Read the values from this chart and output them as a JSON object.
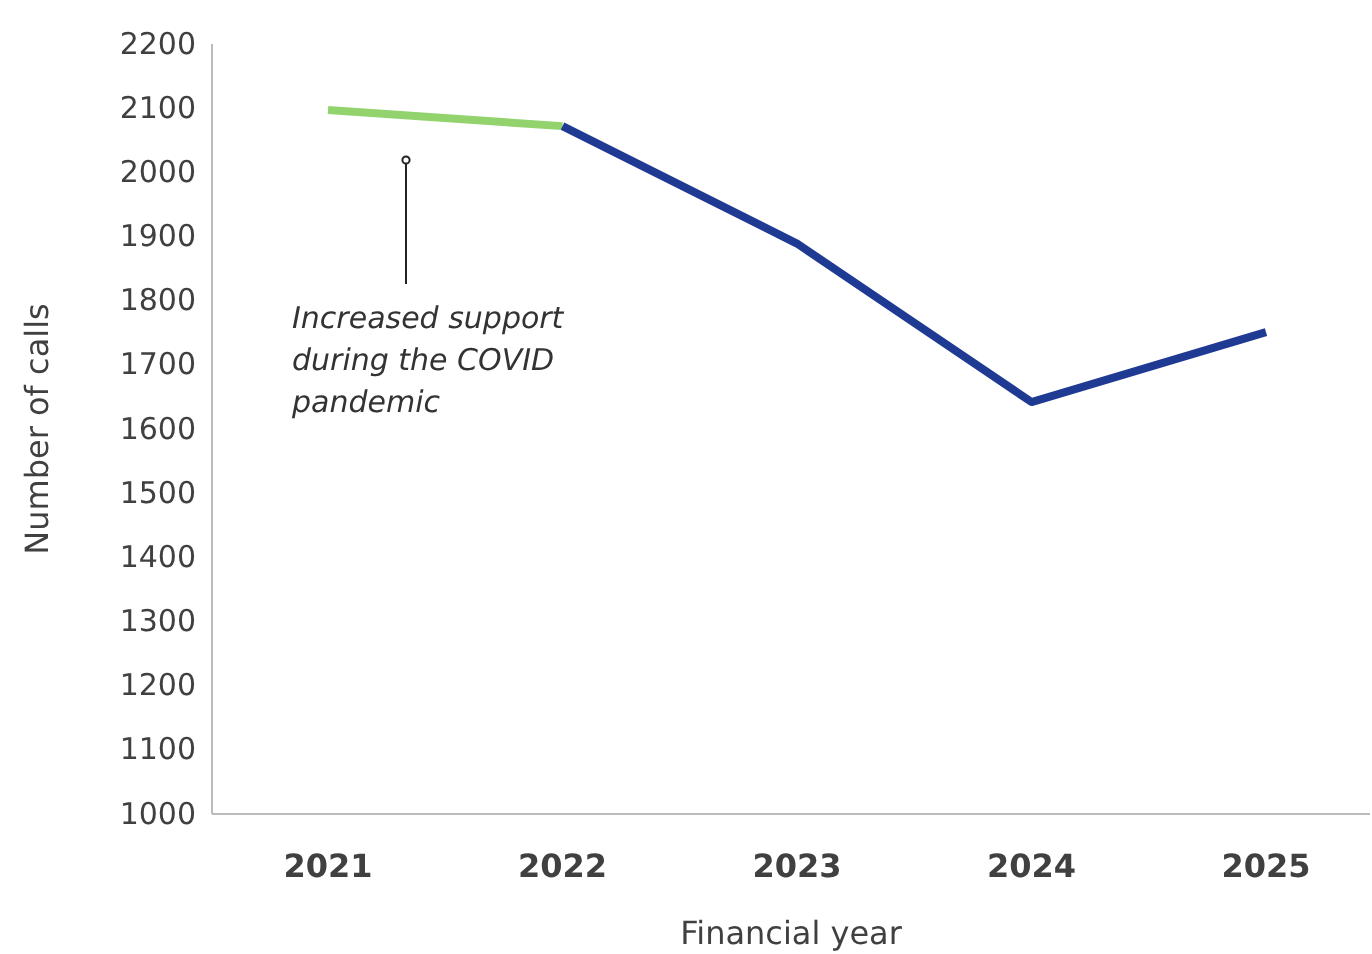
{
  "chart_data": {
    "type": "line",
    "xlabel": "Financial year",
    "ylabel": "Number of calls",
    "categories": [
      "2021",
      "2022",
      "2023",
      "2024",
      "2025"
    ],
    "series": [
      {
        "color": "#92d36e",
        "values": [
          2097,
          2072,
          null,
          null,
          null
        ]
      },
      {
        "color": "#1f3a93",
        "values": [
          null,
          2072,
          1889,
          1642,
          1751
        ]
      }
    ],
    "ylim": [
      1000,
      2200
    ],
    "yticks": [
      1000,
      1100,
      1200,
      1300,
      1400,
      1500,
      1600,
      1700,
      1800,
      1900,
      2000,
      2100,
      2200
    ],
    "grid": false,
    "marker": "none",
    "line_style": "solid",
    "annotations": [
      "Increased support during the COVID pandemic"
    ]
  }
}
